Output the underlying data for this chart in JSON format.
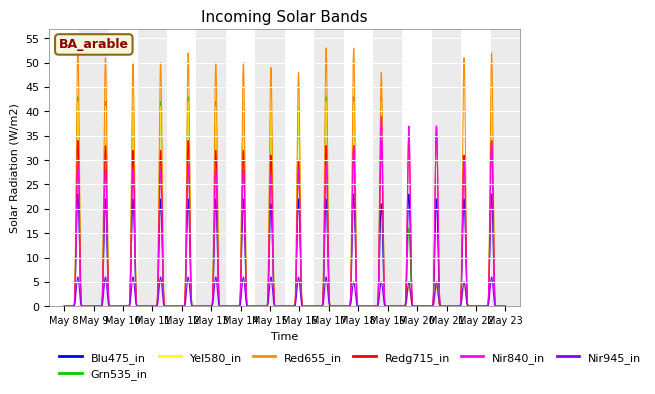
{
  "title": "Incoming Solar Bands",
  "xlabel": "Time",
  "ylabel": "Solar Radiation (W/m2)",
  "annotation": "BA_arable",
  "annotation_color": "#8B0000",
  "annotation_bg": "#F5F5DC",
  "annotation_edge": "#8B6914",
  "xlim_start": -0.5,
  "xlim_end": 15.5,
  "ylim": [
    0,
    57
  ],
  "yticks": [
    0,
    5,
    10,
    15,
    20,
    25,
    30,
    35,
    40,
    45,
    50,
    55
  ],
  "n_days": 16,
  "plot_bg": "#EBEBEB",
  "fig_bg": "#FFFFFF",
  "series_order": [
    "Blu475_in",
    "Grn535_in",
    "Yel580_in",
    "Red655_in",
    "Redg715_in",
    "Nir840_in",
    "Nir945_in"
  ],
  "series_colors": {
    "Blu475_in": "#0000FF",
    "Grn535_in": "#00CC00",
    "Yel580_in": "#FFFF00",
    "Red655_in": "#FF8C00",
    "Redg715_in": "#FF0000",
    "Nir840_in": "#FF00FF",
    "Nir945_in": "#8B00FF"
  },
  "day_peaks": {
    "Blu475_in": [
      23,
      22,
      22,
      22,
      22,
      22,
      22,
      21,
      22,
      22,
      23,
      21,
      23,
      22,
      22,
      23
    ],
    "Grn535_in": [
      43,
      42,
      41,
      42,
      43,
      42,
      42,
      40,
      41,
      43,
      43,
      43,
      16,
      5,
      5,
      43
    ],
    "Yel580_in": [
      42,
      41,
      41,
      41,
      42,
      41,
      42,
      40,
      41,
      42,
      42,
      42,
      5,
      5,
      5,
      43
    ],
    "Red655_in": [
      53,
      51,
      50,
      50,
      52,
      50,
      50,
      49,
      48,
      53,
      53,
      48,
      4,
      4,
      51,
      52
    ],
    "Redg715_in": [
      34,
      33,
      32,
      32,
      34,
      32,
      32,
      31,
      30,
      33,
      33,
      34,
      35,
      37,
      31,
      34
    ],
    "Nir840_in": [
      29,
      28,
      28,
      28,
      29,
      28,
      28,
      27,
      28,
      29,
      33,
      39,
      37,
      37,
      30,
      34
    ],
    "Nir945_in": [
      6,
      6,
      6,
      6,
      6,
      6,
      6,
      6,
      6,
      6,
      5,
      5,
      5,
      5,
      5,
      6
    ]
  },
  "x_tick_labels": [
    "May 8",
    "May 9",
    "May 10",
    "May 11",
    "May 12",
    "May 13",
    "May 14",
    "May 15",
    "May 16",
    "May 17",
    "May 18",
    "May 19",
    "May 20",
    "May 21",
    "May 22",
    "May 23"
  ]
}
